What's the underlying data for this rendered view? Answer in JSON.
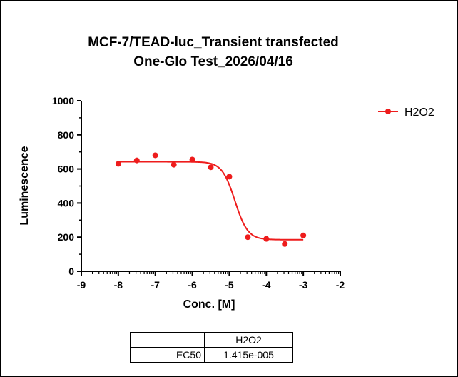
{
  "chart_data": {
    "type": "scatter",
    "title_line1": "MCF-7/TEAD-luc_Transient transfected",
    "title_line2": "One-Glo Test_2026/04/16",
    "xlabel": "Conc. [M]",
    "ylabel": "Luminescence",
    "xlim": [
      -9,
      -2
    ],
    "ylim": [
      0,
      1000
    ],
    "x_ticks": [
      "-9",
      "-8",
      "-7",
      "-6",
      "-5",
      "-4",
      "-3",
      "-2"
    ],
    "y_ticks": [
      "0",
      "200",
      "400",
      "600",
      "800",
      "1000"
    ],
    "legend_position": "top-right",
    "series": [
      {
        "name": "H2O2",
        "color": "#ee1c1c",
        "x": [
          -8,
          -7.5,
          -7,
          -6.5,
          -6,
          -5.5,
          -5,
          -4.5,
          -4,
          -3.5,
          -3
        ],
        "y": [
          630,
          650,
          680,
          625,
          655,
          610,
          555,
          200,
          190,
          160,
          210
        ],
        "fit": {
          "model": "sigmoidal",
          "top": 642,
          "bottom": 185,
          "logEC50": -4.849,
          "hill": -2.5
        }
      }
    ]
  },
  "results_table": {
    "header": [
      "",
      "H2O2"
    ],
    "rows": [
      {
        "label": "EC50",
        "value": "1.415e-005"
      }
    ]
  }
}
